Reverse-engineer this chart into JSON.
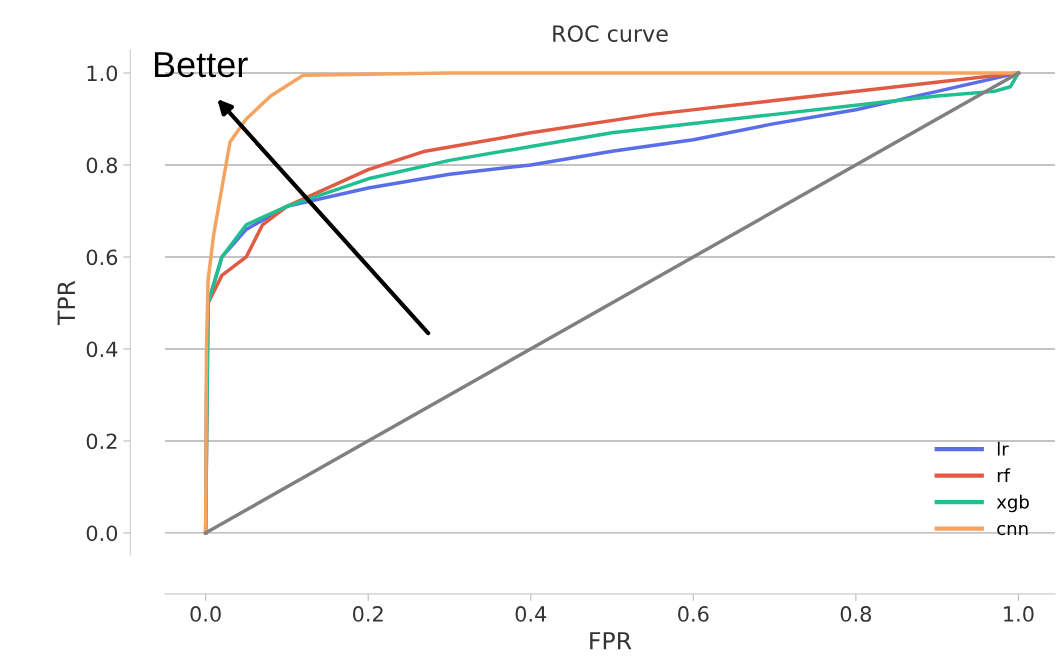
{
  "chart_data": {
    "type": "line",
    "title": "ROC curve",
    "xlabel": "FPR",
    "ylabel": "TPR",
    "xlim": [
      -0.05,
      1.045
    ],
    "ylim": [
      -0.048,
      1.05
    ],
    "xticks": [
      {
        "value": 0,
        "label": "0.0"
      },
      0.2,
      0.4,
      0.6,
      0.8,
      {
        "value": 1,
        "label": "1.0"
      }
    ],
    "yticks": [
      {
        "value": 0,
        "label": "0.0"
      },
      0.2,
      0.4,
      0.6,
      0.8,
      {
        "value": 1,
        "label": "1.0"
      }
    ],
    "grid": "y",
    "legend": "bottom right",
    "line_style": "solid",
    "marker": "none",
    "annotations": [
      "Better"
    ],
    "series": [
      {
        "name": "lr",
        "color": "#5a6ee8",
        "x": [
          0,
          0.001,
          0.003,
          0.02,
          0.05,
          0.1,
          0.2,
          0.3,
          0.4,
          0.5,
          0.6,
          0.7,
          0.8,
          0.9,
          1
        ],
        "values": [
          0,
          0.3,
          0.5,
          0.6,
          0.66,
          0.71,
          0.75,
          0.78,
          0.8,
          0.83,
          0.855,
          0.89,
          0.92,
          0.96,
          1
        ]
      },
      {
        "name": "rf",
        "color": "#e05a44",
        "x": [
          0,
          0.003,
          0.02,
          0.05,
          0.07,
          0.1,
          0.2,
          0.27,
          0.4,
          0.55,
          0.7,
          0.85,
          1
        ],
        "values": [
          0,
          0.5,
          0.56,
          0.6,
          0.67,
          0.71,
          0.79,
          0.83,
          0.87,
          0.91,
          0.94,
          0.97,
          1
        ]
      },
      {
        "name": "xgb",
        "color": "#1fbf8f",
        "x": [
          0,
          0.003,
          0.02,
          0.05,
          0.1,
          0.2,
          0.3,
          0.4,
          0.5,
          0.6,
          0.7,
          0.8,
          0.9,
          0.97,
          0.99,
          1
        ],
        "values": [
          0,
          0.5,
          0.6,
          0.67,
          0.71,
          0.77,
          0.81,
          0.84,
          0.87,
          0.89,
          0.91,
          0.93,
          0.95,
          0.96,
          0.97,
          1
        ]
      },
      {
        "name": "cnn",
        "color": "#f4a460",
        "x": [
          0,
          0.001,
          0.003,
          0.01,
          0.02,
          0.03,
          0.05,
          0.08,
          0.12,
          0.3,
          1
        ],
        "values": [
          0,
          0.4,
          0.55,
          0.65,
          0.75,
          0.85,
          0.9,
          0.95,
          0.995,
          1.0,
          1
        ]
      },
      {
        "color": "#808080",
        "x": [
          0,
          1
        ],
        "values": [
          0,
          1
        ]
      }
    ]
  }
}
